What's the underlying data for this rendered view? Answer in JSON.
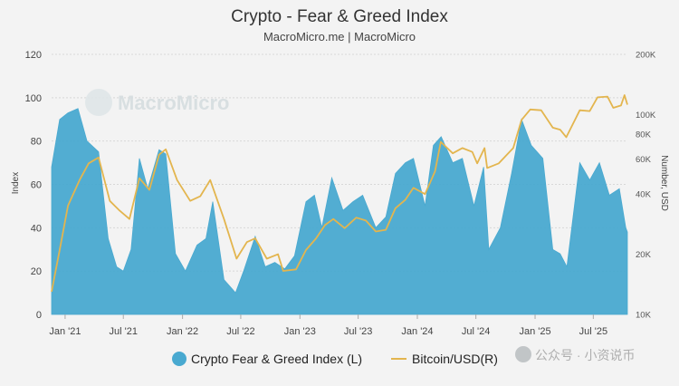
{
  "chart_data": {
    "type": "area",
    "title": "Crypto - Fear & Greed Index",
    "subtitle": "MacroMicro.me | MacroMicro",
    "watermark": "MacroMicro",
    "ylabel_left": "Index",
    "ylabel_right": "Number, USD",
    "ylim_left": [
      0,
      120
    ],
    "yticks_left": [
      "0",
      "20",
      "40",
      "60",
      "80",
      "100",
      "120"
    ],
    "ylim_right_log": [
      10000,
      200000
    ],
    "yticks_right": [
      {
        "label": "10K",
        "value": 10000
      },
      {
        "label": "20K",
        "value": 20000
      },
      {
        "label": "40K",
        "value": 40000
      },
      {
        "label": "60K",
        "value": 60000
      },
      {
        "label": "80K",
        "value": 80000
      },
      {
        "label": "100K",
        "value": 100000
      },
      {
        "label": "200K",
        "value": 200000
      }
    ],
    "xlim": [
      "2020-11-20",
      "2025-10-15"
    ],
    "xticks": [
      {
        "label": "Jan '21",
        "date": "2021-01-01"
      },
      {
        "label": "Jul '21",
        "date": "2021-07-01"
      },
      {
        "label": "Jan '22",
        "date": "2022-01-01"
      },
      {
        "label": "Jul '22",
        "date": "2022-07-01"
      },
      {
        "label": "Jan '23",
        "date": "2023-01-01"
      },
      {
        "label": "Jul '23",
        "date": "2023-07-01"
      },
      {
        "label": "Jan '24",
        "date": "2024-01-01"
      },
      {
        "label": "Jul '24",
        "date": "2024-07-01"
      },
      {
        "label": "Jan '25",
        "date": "2025-01-01"
      },
      {
        "label": "Jul '25",
        "date": "2025-07-01"
      }
    ],
    "grid": true,
    "legend_position": "bottom",
    "series": [
      {
        "name": "Crypto Fear & Greed Index (L)",
        "kind": "area",
        "axis": "left",
        "color": "#49a9d0",
        "points": [
          [
            "2020-11-20",
            68
          ],
          [
            "2020-12-15",
            90
          ],
          [
            "2021-01-10",
            93
          ],
          [
            "2021-02-10",
            95
          ],
          [
            "2021-03-10",
            80
          ],
          [
            "2021-04-15",
            75
          ],
          [
            "2021-05-15",
            35
          ],
          [
            "2021-06-10",
            22
          ],
          [
            "2021-07-01",
            20
          ],
          [
            "2021-07-25",
            30
          ],
          [
            "2021-08-20",
            72
          ],
          [
            "2021-09-15",
            58
          ],
          [
            "2021-10-20",
            76
          ],
          [
            "2021-11-10",
            74
          ],
          [
            "2021-12-10",
            28
          ],
          [
            "2022-01-10",
            20
          ],
          [
            "2022-02-15",
            32
          ],
          [
            "2022-03-15",
            35
          ],
          [
            "2022-04-05",
            52
          ],
          [
            "2022-05-10",
            16
          ],
          [
            "2022-06-15",
            10
          ],
          [
            "2022-07-10",
            20
          ],
          [
            "2022-08-15",
            36
          ],
          [
            "2022-09-15",
            22
          ],
          [
            "2022-10-15",
            24
          ],
          [
            "2022-11-15",
            21
          ],
          [
            "2022-12-15",
            27
          ],
          [
            "2023-01-20",
            52
          ],
          [
            "2023-02-15",
            55
          ],
          [
            "2023-03-10",
            40
          ],
          [
            "2023-04-10",
            63
          ],
          [
            "2023-05-15",
            48
          ],
          [
            "2023-06-15",
            52
          ],
          [
            "2023-07-15",
            55
          ],
          [
            "2023-08-25",
            40
          ],
          [
            "2023-09-25",
            45
          ],
          [
            "2023-10-25",
            65
          ],
          [
            "2023-11-25",
            70
          ],
          [
            "2023-12-20",
            72
          ],
          [
            "2024-01-25",
            50
          ],
          [
            "2024-02-20",
            78
          ],
          [
            "2024-03-15",
            82
          ],
          [
            "2024-04-20",
            70
          ],
          [
            "2024-05-20",
            72
          ],
          [
            "2024-06-25",
            50
          ],
          [
            "2024-07-25",
            68
          ],
          [
            "2024-08-10",
            30
          ],
          [
            "2024-09-15",
            40
          ],
          [
            "2024-10-20",
            65
          ],
          [
            "2024-11-20",
            90
          ],
          [
            "2024-12-20",
            78
          ],
          [
            "2025-01-25",
            72
          ],
          [
            "2025-02-25",
            30
          ],
          [
            "2025-03-20",
            28
          ],
          [
            "2025-04-10",
            22
          ],
          [
            "2025-05-20",
            70
          ],
          [
            "2025-06-20",
            62
          ],
          [
            "2025-07-20",
            70
          ],
          [
            "2025-08-20",
            55
          ],
          [
            "2025-09-20",
            58
          ],
          [
            "2025-10-10",
            40
          ],
          [
            "2025-10-15",
            38
          ]
        ]
      },
      {
        "name": "Bitcoin/USD(R)",
        "kind": "line",
        "axis": "right",
        "color": "#e3b54e",
        "points": [
          [
            "2020-11-20",
            13000
          ],
          [
            "2020-12-15",
            21000
          ],
          [
            "2021-01-10",
            35000
          ],
          [
            "2021-02-15",
            47000
          ],
          [
            "2021-03-15",
            57000
          ],
          [
            "2021-04-15",
            61000
          ],
          [
            "2021-05-20",
            37000
          ],
          [
            "2021-06-20",
            33000
          ],
          [
            "2021-07-20",
            30000
          ],
          [
            "2021-08-20",
            48000
          ],
          [
            "2021-09-20",
            42000
          ],
          [
            "2021-10-20",
            63000
          ],
          [
            "2021-11-10",
            67000
          ],
          [
            "2021-12-15",
            47000
          ],
          [
            "2022-01-25",
            37000
          ],
          [
            "2022-02-25",
            39000
          ],
          [
            "2022-03-28",
            47000
          ],
          [
            "2022-05-10",
            30000
          ],
          [
            "2022-06-18",
            19000
          ],
          [
            "2022-07-20",
            23000
          ],
          [
            "2022-08-15",
            24000
          ],
          [
            "2022-09-20",
            19000
          ],
          [
            "2022-10-25",
            20000
          ],
          [
            "2022-11-10",
            16500
          ],
          [
            "2022-12-20",
            16800
          ],
          [
            "2023-01-20",
            21000
          ],
          [
            "2023-02-20",
            24000
          ],
          [
            "2023-03-20",
            28000
          ],
          [
            "2023-04-15",
            30000
          ],
          [
            "2023-05-20",
            27000
          ],
          [
            "2023-06-25",
            30500
          ],
          [
            "2023-07-25",
            29500
          ],
          [
            "2023-08-25",
            26000
          ],
          [
            "2023-09-25",
            26500
          ],
          [
            "2023-10-25",
            34000
          ],
          [
            "2023-11-25",
            37500
          ],
          [
            "2023-12-20",
            43000
          ],
          [
            "2024-01-25",
            40000
          ],
          [
            "2024-02-25",
            52000
          ],
          [
            "2024-03-14",
            73000
          ],
          [
            "2024-04-20",
            64000
          ],
          [
            "2024-05-20",
            68000
          ],
          [
            "2024-06-20",
            65000
          ],
          [
            "2024-07-05",
            57000
          ],
          [
            "2024-07-28",
            68000
          ],
          [
            "2024-08-05",
            54000
          ],
          [
            "2024-09-10",
            57000
          ],
          [
            "2024-10-25",
            68000
          ],
          [
            "2024-11-20",
            94000
          ],
          [
            "2024-12-17",
            106000
          ],
          [
            "2025-01-20",
            105000
          ],
          [
            "2025-02-25",
            86000
          ],
          [
            "2025-03-20",
            84000
          ],
          [
            "2025-04-08",
            77000
          ],
          [
            "2025-05-20",
            105000
          ],
          [
            "2025-06-20",
            104000
          ],
          [
            "2025-07-14",
            122000
          ],
          [
            "2025-08-14",
            123000
          ],
          [
            "2025-09-01",
            108000
          ],
          [
            "2025-09-25",
            111000
          ],
          [
            "2025-10-06",
            125000
          ],
          [
            "2025-10-15",
            112000
          ]
        ]
      }
    ]
  },
  "footer_overlay": "公众号 · 小资说币"
}
